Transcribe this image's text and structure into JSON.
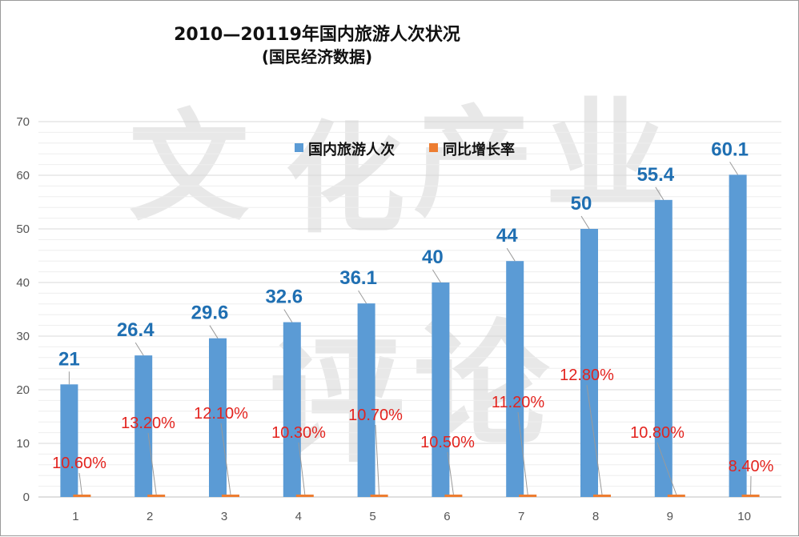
{
  "chart_data": {
    "type": "bar",
    "title": "2010—20119年国内旅游人次状况",
    "subtitle": "(国民经济数据)",
    "categories": [
      "1",
      "2",
      "3",
      "4",
      "5",
      "6",
      "7",
      "8",
      "9",
      "10"
    ],
    "series": [
      {
        "name": "国内旅游人次",
        "values": [
          21,
          26.4,
          29.6,
          32.6,
          36.1,
          40,
          44,
          50,
          55.4,
          60.1
        ],
        "labels": [
          "21",
          "26.4",
          "29.6",
          "32.6",
          "36.1",
          "40",
          "44",
          "50",
          "55.4",
          "60.1"
        ],
        "color": "#5b9bd5"
      },
      {
        "name": "同比增长率",
        "values": [
          0.106,
          0.132,
          0.121,
          0.103,
          0.107,
          0.105,
          0.112,
          0.128,
          0.108,
          0.084
        ],
        "labels": [
          "10.60%",
          "13.20%",
          "12.10%",
          "10.30%",
          "10.70%",
          "10.50%",
          "11.20%",
          "12.80%",
          "10.80%",
          "8.40%"
        ],
        "color": "#ed7d31"
      }
    ],
    "yticks": [
      "0",
      "10",
      "20",
      "30",
      "40",
      "50",
      "60",
      "70"
    ],
    "ylim": [
      0,
      70
    ],
    "grid": true,
    "legend_position": "top-center",
    "value_label_color": "#1f6fb2",
    "percent_label_color": "#e3231e"
  },
  "watermark": {
    "text": [
      "文",
      "化",
      "产",
      "业",
      "评",
      "论"
    ]
  }
}
